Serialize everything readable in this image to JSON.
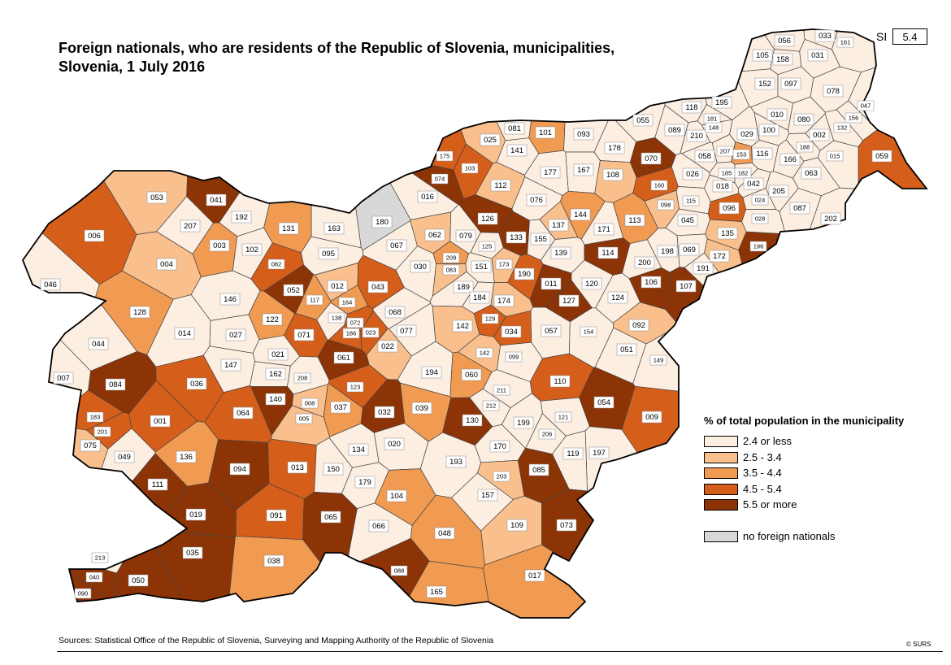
{
  "title_line1": "Foreign nationals, who are residents of the Republic of Slovenia, municipalities,",
  "title_line2": "Slovenia, 1 July 2016",
  "national": {
    "label": "SI",
    "value": "5.4"
  },
  "legend": {
    "title": "% of total population in the municipality",
    "classes": [
      {
        "label": "2.4 or less",
        "color": "#fdeee2"
      },
      {
        "label": "2.5 - 3.4",
        "color": "#f9c08e"
      },
      {
        "label": "3.5 - 4.4",
        "color": "#f09a52"
      },
      {
        "label": "4.5 - 5.4",
        "color": "#d55e1a"
      },
      {
        "label": "5.5 or more",
        "color": "#8d3406"
      }
    ],
    "none": {
      "label": "no foreign nationals",
      "color": "#d8d8d8"
    }
  },
  "source": "Sources: Statistical Office of the Republic of Slovenia, Surveying and Mapping Authority of the Republic of Slovenia",
  "copyright": "© SURS",
  "municipalities": [
    {
      "code": "056",
      "cls": 0
    },
    {
      "code": "033",
      "cls": 0
    },
    {
      "code": "161",
      "cls": 0
    },
    {
      "code": "105",
      "cls": 0
    },
    {
      "code": "158",
      "cls": 0
    },
    {
      "code": "031",
      "cls": 0
    },
    {
      "code": "152",
      "cls": 0
    },
    {
      "code": "097",
      "cls": 0
    },
    {
      "code": "078",
      "cls": 0
    },
    {
      "code": "195",
      "cls": 0
    },
    {
      "code": "118",
      "cls": 0
    },
    {
      "code": "181",
      "cls": 0
    },
    {
      "code": "010",
      "cls": 0
    },
    {
      "code": "080",
      "cls": 0
    },
    {
      "code": "047",
      "cls": 0
    },
    {
      "code": "156",
      "cls": 0
    },
    {
      "code": "055",
      "cls": 0
    },
    {
      "code": "089",
      "cls": 0
    },
    {
      "code": "210",
      "cls": 0
    },
    {
      "code": "148",
      "cls": 0
    },
    {
      "code": "029",
      "cls": 0
    },
    {
      "code": "100",
      "cls": 0
    },
    {
      "code": "132",
      "cls": 0
    },
    {
      "code": "002",
      "cls": 0
    },
    {
      "code": "081",
      "cls": 0
    },
    {
      "code": "101",
      "cls": 2
    },
    {
      "code": "093",
      "cls": 0
    },
    {
      "code": "025",
      "cls": 1
    },
    {
      "code": "141",
      "cls": 0
    },
    {
      "code": "178",
      "cls": 0
    },
    {
      "code": "070",
      "cls": 4
    },
    {
      "code": "058",
      "cls": 0
    },
    {
      "code": "207",
      "cls": 0
    },
    {
      "code": "153",
      "cls": 2
    },
    {
      "code": "116",
      "cls": 0
    },
    {
      "code": "166",
      "cls": 0
    },
    {
      "code": "188",
      "cls": 0
    },
    {
      "code": "059",
      "cls": 3
    },
    {
      "code": "175",
      "cls": 3
    },
    {
      "code": "103",
      "cls": 3
    },
    {
      "code": "177",
      "cls": 0
    },
    {
      "code": "167",
      "cls": 0
    },
    {
      "code": "108",
      "cls": 1
    },
    {
      "code": "026",
      "cls": 0
    },
    {
      "code": "185",
      "cls": 0
    },
    {
      "code": "182",
      "cls": 0
    },
    {
      "code": "063",
      "cls": 0
    },
    {
      "code": "015",
      "cls": 0
    },
    {
      "code": "074",
      "cls": 4
    },
    {
      "code": "112",
      "cls": 1
    },
    {
      "code": "160",
      "cls": 3
    },
    {
      "code": "018",
      "cls": 0
    },
    {
      "code": "042",
      "cls": 0
    },
    {
      "code": "053",
      "cls": 1
    },
    {
      "code": "041",
      "cls": 4
    },
    {
      "code": "016",
      "cls": 0
    },
    {
      "code": "076",
      "cls": 0
    },
    {
      "code": "098",
      "cls": 1
    },
    {
      "code": "115",
      "cls": 0
    },
    {
      "code": "096",
      "cls": 3
    },
    {
      "code": "024",
      "cls": 0
    },
    {
      "code": "205",
      "cls": 0
    },
    {
      "code": "087",
      "cls": 0
    },
    {
      "code": "202",
      "cls": 0
    },
    {
      "code": "180",
      "cls": 5
    },
    {
      "code": "192",
      "cls": 0
    },
    {
      "code": "207b",
      "cls": 0
    },
    {
      "code": "006",
      "cls": 3
    },
    {
      "code": "163",
      "cls": 0
    },
    {
      "code": "126",
      "cls": 4
    },
    {
      "code": "144",
      "cls": 2
    },
    {
      "code": "137",
      "cls": 1
    },
    {
      "code": "113",
      "cls": 2
    },
    {
      "code": "045",
      "cls": 0
    },
    {
      "code": "028",
      "cls": 0
    },
    {
      "code": "131",
      "cls": 2
    },
    {
      "code": "003",
      "cls": 2
    },
    {
      "code": "067",
      "cls": 0
    },
    {
      "code": "062",
      "cls": 1
    },
    {
      "code": "079",
      "cls": 0
    },
    {
      "code": "133",
      "cls": 4
    },
    {
      "code": "155",
      "cls": 0
    },
    {
      "code": "171",
      "cls": 0
    },
    {
      "code": "135",
      "cls": 1
    },
    {
      "code": "196",
      "cls": 4
    },
    {
      "code": "102",
      "cls": 0
    },
    {
      "code": "095",
      "cls": 0
    },
    {
      "code": "125",
      "cls": 0
    },
    {
      "code": "209",
      "cls": 2
    },
    {
      "code": "139",
      "cls": 0
    },
    {
      "code": "114",
      "cls": 4
    },
    {
      "code": "198",
      "cls": 0
    },
    {
      "code": "069",
      "cls": 0
    },
    {
      "code": "172",
      "cls": 1
    },
    {
      "code": "004",
      "cls": 1
    },
    {
      "code": "082",
      "cls": 3
    },
    {
      "code": "030",
      "cls": 0
    },
    {
      "code": "083",
      "cls": 1
    },
    {
      "code": "151",
      "cls": 0
    },
    {
      "code": "173",
      "cls": 1
    },
    {
      "code": "200",
      "cls": 0
    },
    {
      "code": "191",
      "cls": 0
    },
    {
      "code": "046",
      "cls": 0
    },
    {
      "code": "052",
      "cls": 4
    },
    {
      "code": "012",
      "cls": 1
    },
    {
      "code": "043",
      "cls": 3
    },
    {
      "code": "190",
      "cls": 3
    },
    {
      "code": "011",
      "cls": 4
    },
    {
      "code": "120",
      "cls": 0
    },
    {
      "code": "106",
      "cls": 4
    },
    {
      "code": "107",
      "cls": 4
    },
    {
      "code": "146",
      "cls": 0
    },
    {
      "code": "117",
      "cls": 2
    },
    {
      "code": "189",
      "cls": 0
    },
    {
      "code": "184",
      "cls": 0
    },
    {
      "code": "174",
      "cls": 1
    },
    {
      "code": "127",
      "cls": 4
    },
    {
      "code": "124",
      "cls": 0
    },
    {
      "code": "128",
      "cls": 2
    },
    {
      "code": "122",
      "cls": 2
    },
    {
      "code": "164",
      "cls": 2
    },
    {
      "code": "138",
      "cls": 0
    },
    {
      "code": "068",
      "cls": 0
    },
    {
      "code": "129",
      "cls": 3
    },
    {
      "code": "092",
      "cls": 1
    },
    {
      "code": "014",
      "cls": 0
    },
    {
      "code": "027",
      "cls": 0
    },
    {
      "code": "071",
      "cls": 3
    },
    {
      "code": "072",
      "cls": 3
    },
    {
      "code": "186",
      "cls": 3
    },
    {
      "code": "023",
      "cls": 3
    },
    {
      "code": "077",
      "cls": 0
    },
    {
      "code": "142",
      "cls": 1
    },
    {
      "code": "034",
      "cls": 3
    },
    {
      "code": "057",
      "cls": 0
    },
    {
      "code": "154",
      "cls": 0
    },
    {
      "code": "044",
      "cls": 0
    },
    {
      "code": "022",
      "cls": 1
    },
    {
      "code": "051",
      "cls": 0
    },
    {
      "code": "149",
      "cls": 0
    },
    {
      "code": "021",
      "cls": 0
    },
    {
      "code": "147",
      "cls": 0
    },
    {
      "code": "061",
      "cls": 4
    },
    {
      "code": "142b",
      "cls": 1
    },
    {
      "code": "099",
      "cls": 0
    },
    {
      "code": "007",
      "cls": 0
    },
    {
      "code": "162",
      "cls": 0
    },
    {
      "code": "208",
      "cls": 0
    },
    {
      "code": "194",
      "cls": 0
    },
    {
      "code": "060",
      "cls": 2
    },
    {
      "code": "110",
      "cls": 3
    },
    {
      "code": "084",
      "cls": 4
    },
    {
      "code": "036",
      "cls": 3
    },
    {
      "code": "140",
      "cls": 4
    },
    {
      "code": "123",
      "cls": 3
    },
    {
      "code": "211",
      "cls": 0
    },
    {
      "code": "054",
      "cls": 4
    },
    {
      "code": "009",
      "cls": 3
    },
    {
      "code": "008",
      "cls": 1
    },
    {
      "code": "037",
      "cls": 2
    },
    {
      "code": "039",
      "cls": 2
    },
    {
      "code": "212",
      "cls": 0
    },
    {
      "code": "064",
      "cls": 3
    },
    {
      "code": "005",
      "cls": 1
    },
    {
      "code": "032",
      "cls": 4
    },
    {
      "code": "130",
      "cls": 4
    },
    {
      "code": "121",
      "cls": 0
    },
    {
      "code": "183",
      "cls": 3
    },
    {
      "code": "201",
      "cls": 3
    },
    {
      "code": "001",
      "cls": 3
    },
    {
      "code": "199",
      "cls": 0
    },
    {
      "code": "206",
      "cls": 0
    },
    {
      "code": "075",
      "cls": 1
    },
    {
      "code": "020",
      "cls": 0
    },
    {
      "code": "134",
      "cls": 0
    },
    {
      "code": "170",
      "cls": 0
    },
    {
      "code": "197",
      "cls": 0
    },
    {
      "code": "119",
      "cls": 0
    },
    {
      "code": "049",
      "cls": 0
    },
    {
      "code": "136",
      "cls": 2
    },
    {
      "code": "094",
      "cls": 4
    },
    {
      "code": "013",
      "cls": 3
    },
    {
      "code": "150",
      "cls": 0
    },
    {
      "code": "193",
      "cls": 0
    },
    {
      "code": "085",
      "cls": 4
    },
    {
      "code": "203",
      "cls": 1
    },
    {
      "code": "111",
      "cls": 4
    },
    {
      "code": "179",
      "cls": 0
    },
    {
      "code": "104",
      "cls": 2
    },
    {
      "code": "157",
      "cls": 0
    },
    {
      "code": "019",
      "cls": 4
    },
    {
      "code": "091",
      "cls": 3
    },
    {
      "code": "065",
      "cls": 4
    },
    {
      "code": "066",
      "cls": 0
    },
    {
      "code": "109",
      "cls": 1
    },
    {
      "code": "073",
      "cls": 4
    },
    {
      "code": "048",
      "cls": 2
    },
    {
      "code": "213",
      "cls": 0
    },
    {
      "code": "035",
      "cls": 4
    },
    {
      "code": "038",
      "cls": 2
    },
    {
      "code": "040",
      "cls": 4
    },
    {
      "code": "050",
      "cls": 4
    },
    {
      "code": "090",
      "cls": 4
    },
    {
      "code": "088",
      "cls": 4
    },
    {
      "code": "017",
      "cls": 2
    },
    {
      "code": "165",
      "cls": 2
    }
  ]
}
